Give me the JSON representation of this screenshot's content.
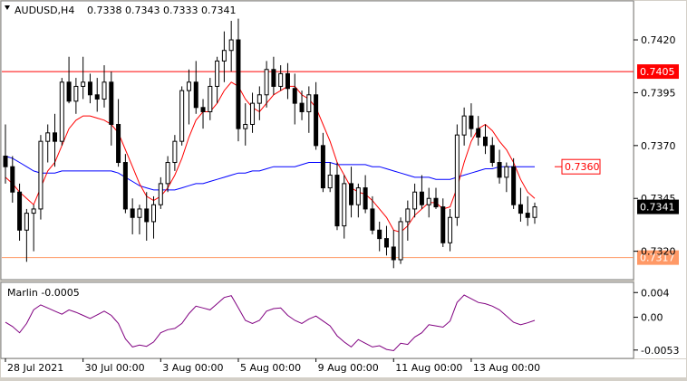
{
  "header": {
    "symbol_label": "AUDUSD,H4",
    "ohlc_text": "0.7338 0.7343 0.7333 0.7341"
  },
  "indicator": {
    "name_label": "Marlin -0.0005",
    "axis_labels": [
      "0.004",
      "0.00",
      "-0.0053"
    ]
  },
  "price_axis": {
    "tick_labels": [
      "0.7420",
      "0.7395",
      "0.7370",
      "0.7345",
      "0.7320"
    ]
  },
  "time_axis": {
    "labels": [
      "28 Jul 2021",
      "30 Jul 00:00",
      "3 Aug 00:00",
      "5 Aug 00:00",
      "9 Aug 00:00",
      "11 Aug 00:00",
      "13 Aug 00:00"
    ]
  },
  "levels": {
    "resistance_label": "0.7405",
    "support_label": "0.7317",
    "target_label": "0.7360",
    "current_price_label": "0.7341"
  },
  "colors": {
    "background": "#ffffff",
    "frame": "#d4d0c8",
    "candle": "#000000",
    "ma_fast": "#ff0000",
    "ma_slow": "#0000ff",
    "oscillator": "#800080",
    "level_line": "#ff0000",
    "support_line": "#ff9966",
    "current_price_box": "#000000"
  },
  "chart_data": [
    {
      "type": "candlestick",
      "title": "AUDUSD,H4",
      "ylim": [
        0.7307,
        0.7438
      ],
      "y_ticks": [
        0.742,
        0.7395,
        0.737,
        0.7345,
        0.732
      ],
      "x_tick_labels": [
        "28 Jul 2021",
        "30 Jul 00:00",
        "3 Aug 00:00",
        "5 Aug 00:00",
        "9 Aug 00:00",
        "11 Aug 00:00",
        "13 Aug 00:00"
      ],
      "horizontal_levels": [
        0.7405,
        0.7317
      ],
      "annotation": {
        "text": "0.7360",
        "value": 0.736
      },
      "last_price": 0.7341,
      "series": [
        {
          "kind": "candles",
          "ohlc": [
            [
              0.7365,
              0.738,
              0.7352,
              0.736
            ],
            [
              0.736,
              0.7365,
              0.7343,
              0.7348
            ],
            [
              0.7348,
              0.7352,
              0.7325,
              0.733
            ],
            [
              0.733,
              0.734,
              0.7315,
              0.7338
            ],
            [
              0.7338,
              0.7342,
              0.732,
              0.734
            ],
            [
              0.734,
              0.7375,
              0.7335,
              0.7372
            ],
            [
              0.7372,
              0.738,
              0.7362,
              0.7376
            ],
            [
              0.7376,
              0.7385,
              0.736,
              0.7372
            ],
            [
              0.7372,
              0.7402,
              0.737,
              0.74
            ],
            [
              0.74,
              0.7412,
              0.739,
              0.7391
            ],
            [
              0.7391,
              0.7402,
              0.7385,
              0.7398
            ],
            [
              0.7398,
              0.7412,
              0.7392,
              0.74
            ],
            [
              0.74,
              0.7404,
              0.739,
              0.7394
            ],
            [
              0.7394,
              0.7402,
              0.7386,
              0.7392
            ],
            [
              0.7392,
              0.7408,
              0.7388,
              0.74
            ],
            [
              0.74,
              0.7405,
              0.737,
              0.738
            ],
            [
              0.738,
              0.7392,
              0.736,
              0.7362
            ],
            [
              0.7362,
              0.7366,
              0.7338,
              0.734
            ],
            [
              0.734,
              0.7345,
              0.7328,
              0.7336
            ],
            [
              0.7336,
              0.7342,
              0.7328,
              0.734
            ],
            [
              0.734,
              0.7348,
              0.7325,
              0.7334
            ],
            [
              0.7334,
              0.7346,
              0.7326,
              0.7342
            ],
            [
              0.7342,
              0.7355,
              0.734,
              0.7352
            ],
            [
              0.7352,
              0.7365,
              0.7348,
              0.7362
            ],
            [
              0.7362,
              0.7375,
              0.7358,
              0.7372
            ],
            [
              0.7372,
              0.7398,
              0.737,
              0.7396
            ],
            [
              0.7396,
              0.7406,
              0.738,
              0.74
            ],
            [
              0.74,
              0.741,
              0.7385,
              0.7388
            ],
            [
              0.7388,
              0.7392,
              0.7378,
              0.7386
            ],
            [
              0.7386,
              0.7402,
              0.7382,
              0.7398
            ],
            [
              0.7398,
              0.7412,
              0.739,
              0.741
            ],
            [
              0.741,
              0.7424,
              0.74,
              0.7415
            ],
            [
              0.7415,
              0.7429,
              0.7405,
              0.742
            ],
            [
              0.742,
              0.743,
              0.7372,
              0.7378
            ],
            [
              0.7378,
              0.739,
              0.737,
              0.738
            ],
            [
              0.738,
              0.7395,
              0.7376,
              0.739
            ],
            [
              0.739,
              0.7398,
              0.7382,
              0.7394
            ],
            [
              0.7394,
              0.741,
              0.7388,
              0.7406
            ],
            [
              0.7406,
              0.7412,
              0.7394,
              0.7398
            ],
            [
              0.7398,
              0.7408,
              0.7396,
              0.7404
            ],
            [
              0.7404,
              0.7409,
              0.7392,
              0.7397
            ],
            [
              0.7397,
              0.7404,
              0.738,
              0.739
            ],
            [
              0.739,
              0.7396,
              0.7382,
              0.7386
            ],
            [
              0.7386,
              0.7398,
              0.7376,
              0.7394
            ],
            [
              0.7394,
              0.74,
              0.7368,
              0.737
            ],
            [
              0.737,
              0.7376,
              0.7348,
              0.735
            ],
            [
              0.735,
              0.7362,
              0.7348,
              0.7356
            ],
            [
              0.7356,
              0.7362,
              0.733,
              0.7332
            ],
            [
              0.7332,
              0.7356,
              0.7326,
              0.7352
            ],
            [
              0.7352,
              0.736,
              0.7336,
              0.7342
            ],
            [
              0.7342,
              0.7352,
              0.7336,
              0.735
            ],
            [
              0.735,
              0.7356,
              0.7338,
              0.734
            ],
            [
              0.734,
              0.7346,
              0.7328,
              0.733
            ],
            [
              0.733,
              0.7334,
              0.732,
              0.7326
            ],
            [
              0.7326,
              0.7332,
              0.7318,
              0.7322
            ],
            [
              0.7322,
              0.733,
              0.7312,
              0.7316
            ],
            [
              0.7316,
              0.7336,
              0.7314,
              0.7334
            ],
            [
              0.7334,
              0.7344,
              0.7325,
              0.734
            ],
            [
              0.734,
              0.7352,
              0.7336,
              0.7348
            ],
            [
              0.7348,
              0.7356,
              0.734,
              0.7342
            ],
            [
              0.7342,
              0.735,
              0.7336,
              0.7345
            ],
            [
              0.7345,
              0.735,
              0.734,
              0.7341
            ],
            [
              0.7341,
              0.7345,
              0.7322,
              0.7324
            ],
            [
              0.7324,
              0.734,
              0.732,
              0.7336
            ],
            [
              0.7336,
              0.738,
              0.7332,
              0.7375
            ],
            [
              0.7375,
              0.7388,
              0.737,
              0.7384
            ],
            [
              0.7384,
              0.739,
              0.7374,
              0.7378
            ],
            [
              0.7378,
              0.7384,
              0.737,
              0.7374
            ],
            [
              0.7374,
              0.738,
              0.7366,
              0.737
            ],
            [
              0.737,
              0.7374,
              0.736,
              0.7362
            ],
            [
              0.7362,
              0.7368,
              0.7352,
              0.7355
            ],
            [
              0.7355,
              0.7362,
              0.7348,
              0.736
            ],
            [
              0.736,
              0.7364,
              0.734,
              0.7342
            ],
            [
              0.7342,
              0.735,
              0.7334,
              0.7338
            ],
            [
              0.7338,
              0.7346,
              0.7332,
              0.7336
            ],
            [
              0.7336,
              0.7343,
              0.7333,
              0.7341
            ]
          ]
        },
        {
          "kind": "line",
          "values": [
            0.7355,
            0.7352,
            0.7348,
            0.7345,
            0.7342,
            0.735,
            0.7358,
            0.7362,
            0.737,
            0.7378,
            0.7382,
            0.7384,
            0.7384,
            0.7383,
            0.7382,
            0.738,
            0.7376,
            0.7368,
            0.736,
            0.7352,
            0.7346,
            0.7344,
            0.7346,
            0.735,
            0.7356,
            0.7364,
            0.7374,
            0.7382,
            0.7386,
            0.7386,
            0.739,
            0.7396,
            0.74,
            0.7398,
            0.7392,
            0.7388,
            0.7386,
            0.739,
            0.7394,
            0.7396,
            0.7398,
            0.7398,
            0.7394,
            0.7392,
            0.7388,
            0.738,
            0.7372,
            0.7362,
            0.7356,
            0.735,
            0.7348,
            0.7347,
            0.7344,
            0.734,
            0.7336,
            0.733,
            0.7329,
            0.7332,
            0.7337,
            0.734,
            0.7343,
            0.7343,
            0.734,
            0.7341,
            0.735,
            0.7362,
            0.7372,
            0.7378,
            0.738,
            0.7377,
            0.7372,
            0.7368,
            0.7362,
            0.7354,
            0.7348,
            0.7345
          ]
        },
        {
          "kind": "line",
          "values": [
            0.7365,
            0.7364,
            0.7362,
            0.736,
            0.7358,
            0.7357,
            0.7357,
            0.7357,
            0.7358,
            0.7358,
            0.7358,
            0.7358,
            0.7358,
            0.7358,
            0.7358,
            0.7358,
            0.7357,
            0.7355,
            0.7353,
            0.7351,
            0.735,
            0.7349,
            0.7349,
            0.7349,
            0.7349,
            0.735,
            0.7351,
            0.7352,
            0.7352,
            0.7353,
            0.7354,
            0.7355,
            0.7356,
            0.7357,
            0.7357,
            0.7358,
            0.7358,
            0.7359,
            0.736,
            0.736,
            0.736,
            0.736,
            0.7361,
            0.7362,
            0.7362,
            0.7362,
            0.7362,
            0.7361,
            0.7361,
            0.7361,
            0.7361,
            0.7361,
            0.736,
            0.736,
            0.7359,
            0.7358,
            0.7357,
            0.7356,
            0.7355,
            0.7355,
            0.7355,
            0.7354,
            0.7354,
            0.7354,
            0.7355,
            0.7356,
            0.7357,
            0.7358,
            0.7359,
            0.7359,
            0.736,
            0.736,
            0.736,
            0.736,
            0.736,
            0.736
          ]
        }
      ]
    },
    {
      "type": "line",
      "title": "Marlin -0.0005",
      "ylim": [
        -0.0065,
        0.0055
      ],
      "y_ticks": [
        0.004,
        0.0,
        -0.0053
      ],
      "series": [
        {
          "kind": "line",
          "values": [
            -0.0008,
            -0.0015,
            -0.0025,
            -0.001,
            0.0012,
            0.002,
            0.0015,
            0.001,
            0.0005,
            0.0012,
            0.0008,
            0.0003,
            -0.0002,
            0.0004,
            0.001,
            0.0003,
            -0.001,
            -0.0035,
            -0.0048,
            -0.0045,
            -0.0047,
            -0.004,
            -0.0025,
            -0.002,
            -0.0018,
            -0.001,
            0.0006,
            0.0018,
            0.0015,
            0.0012,
            0.0022,
            0.0032,
            0.0035,
            0.0015,
            -0.0005,
            -0.001,
            -0.0005,
            0.001,
            0.0014,
            0.0015,
            0.0003,
            -0.0005,
            -0.001,
            -0.0003,
            0.0002,
            -0.0006,
            -0.0014,
            -0.003,
            -0.004,
            -0.0048,
            -0.0036,
            -0.0042,
            -0.0048,
            -0.0046,
            -0.0052,
            -0.0054,
            -0.0042,
            -0.0044,
            -0.0032,
            -0.0025,
            -0.0012,
            -0.0014,
            -0.0016,
            -0.0006,
            0.0024,
            0.0036,
            0.003,
            0.0024,
            0.0022,
            0.0018,
            0.0012,
            0.0002,
            -0.0008,
            -0.0012,
            -0.0009,
            -0.0005
          ]
        }
      ]
    }
  ]
}
